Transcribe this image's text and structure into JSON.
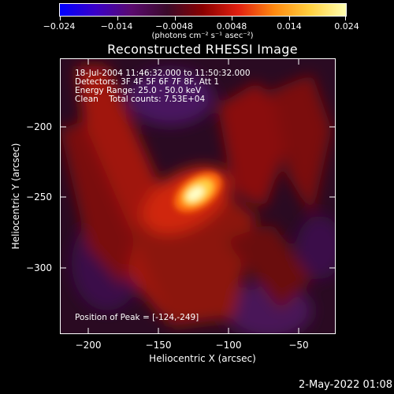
{
  "colorbar": {
    "tick_labels": [
      "−0.024",
      "−0.014",
      "−0.0048",
      "0.0048",
      "0.014",
      "0.024"
    ],
    "units": "(photons cm⁻² s⁻¹ asec⁻²)",
    "colors": [
      "#0000ff",
      "#3b00c8",
      "#5a0a6e",
      "#3a0a2a",
      "#8a0000",
      "#e22010",
      "#ff8a10",
      "#ffd040",
      "#ffffb0"
    ]
  },
  "plot": {
    "title": "Reconstructed RHESSI Image",
    "annotations": {
      "time": "18-Jul-2004 11:46:32.000 to 11:50:32.000",
      "detectors": "Detectors: 3F 4F 5F 6F 7F 8F, Att 1",
      "energy": "Energy Range: 25.0 - 50.0 keV",
      "clean": "Clean    Total counts: 7.53E+04",
      "peak": "Position of Peak = [-124,-249]"
    },
    "xlabel": "Heliocentric X (arcsec)",
    "ylabel": "Heliocentric Y (arcsec)",
    "x_ticks": [
      "−200",
      "−150",
      "−100",
      "−50"
    ],
    "y_ticks": [
      "−200",
      "−250",
      "−300"
    ]
  },
  "chart_data": {
    "type": "heatmap",
    "title": "Reconstructed RHESSI Image",
    "xlabel": "Heliocentric X (arcsec)",
    "ylabel": "Heliocentric Y (arcsec)",
    "xlim": [
      -218,
      -28
    ],
    "ylim": [
      -345,
      -155
    ],
    "color_range": [
      -0.024,
      0.024
    ],
    "colorbar_label": "(photons cm^-2 s^-1 asec^-2)",
    "peak": {
      "x": -124,
      "y": -249
    }
  },
  "footer": {
    "timestamp": "2-May-2022 01:08"
  }
}
